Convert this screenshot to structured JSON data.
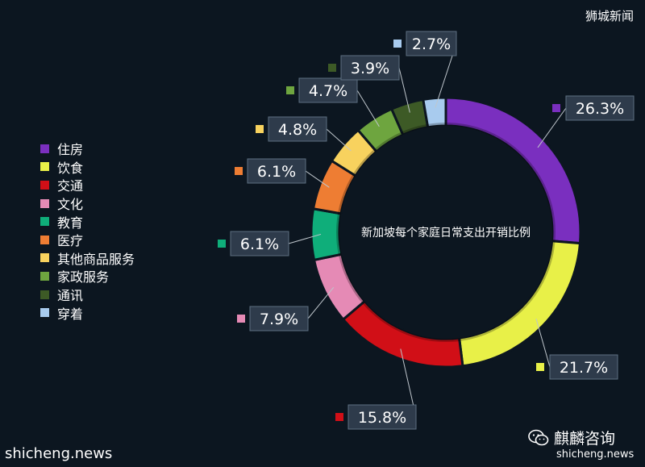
{
  "brand_top": "狮城新闻",
  "brand_bottom_left": "shicheng.news",
  "wechat": {
    "name": "麒麟咨询",
    "url": "shicheng.news"
  },
  "chart_data": {
    "type": "pie",
    "title": "新加坡每个家庭日常支出开销比例",
    "categories": [
      "住房",
      "饮食",
      "交通",
      "文化",
      "教育",
      "医疗",
      "其他商品服务",
      "家政服务",
      "通讯",
      "穿着"
    ],
    "values": [
      26.3,
      21.7,
      15.8,
      7.9,
      6.1,
      6.1,
      4.8,
      4.7,
      3.9,
      2.7
    ],
    "value_labels": [
      "26.3%",
      "21.7%",
      "15.8%",
      "7.9%",
      "6.1%",
      "6.1%",
      "4.8%",
      "4.7%",
      "3.9%",
      "2.7%"
    ],
    "colors": [
      "#7a2fbf",
      "#e8f048",
      "#d10f17",
      "#e58ab5",
      "#0fae7a",
      "#ee7d33",
      "#f8d25e",
      "#6ea53f",
      "#3d5a26",
      "#a8cbee"
    ],
    "donut": true,
    "start_angle": "12 o'clock, clockwise",
    "legend_position": "left"
  }
}
